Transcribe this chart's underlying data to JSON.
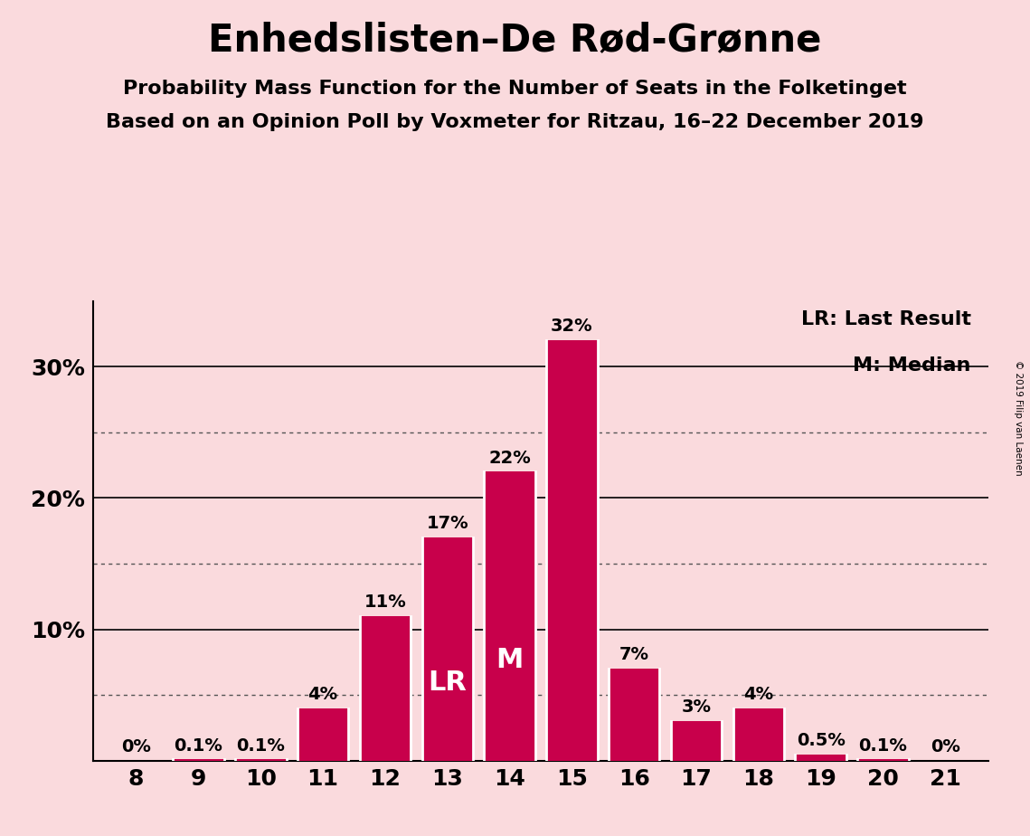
{
  "title": "Enhedslisten–De Rød-Grønne",
  "subtitle1": "Probability Mass Function for the Number of Seats in the Folketinget",
  "subtitle2": "Based on an Opinion Poll by Voxmeter for Ritzau, 16–22 December 2019",
  "copyright": "© 2019 Filip van Laenen",
  "seats": [
    8,
    9,
    10,
    11,
    12,
    13,
    14,
    15,
    16,
    17,
    18,
    19,
    20,
    21
  ],
  "probs": [
    0.0,
    0.1,
    0.1,
    4.0,
    11.0,
    17.0,
    22.0,
    32.0,
    7.0,
    3.0,
    4.0,
    0.5,
    0.1,
    0.0
  ],
  "prob_labels": [
    "0%",
    "0.1%",
    "0.1%",
    "4%",
    "11%",
    "17%",
    "22%",
    "32%",
    "7%",
    "3%",
    "4%",
    "0.5%",
    "0.1%",
    "0%"
  ],
  "bar_color": "#C8004B",
  "background_color": "#FADADD",
  "dotted_lines": [
    5,
    15,
    25
  ],
  "solid_lines": [
    10,
    20,
    30
  ],
  "lr_seat": 13,
  "median_seat": 14,
  "legend_lr": "LR: Last Result",
  "legend_m": "M: Median",
  "lr_label": "LR",
  "m_label": "M",
  "title_fontsize": 30,
  "subtitle_fontsize": 16,
  "axis_label_fontsize": 18,
  "bar_label_fontsize": 14,
  "legend_fontsize": 16,
  "ylim": [
    0,
    35
  ],
  "xlim": [
    7.3,
    21.7
  ]
}
